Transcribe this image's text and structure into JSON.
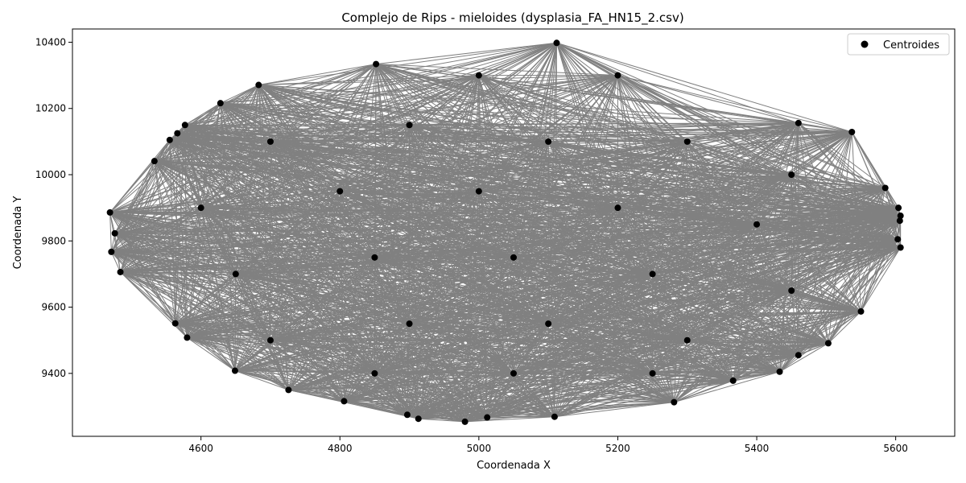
{
  "chart_data": {
    "type": "scatter",
    "title": "Complejo de Rips - mieloides (dysplasia_FA_HN15_2.csv)",
    "xlabel": "Coordenada X",
    "ylabel": "Coordenada Y",
    "xlim": [
      4415,
      5685
    ],
    "ylim": [
      9210,
      10440
    ],
    "xticks": [
      4600,
      4800,
      5000,
      5200,
      5400,
      5600
    ],
    "yticks": [
      9400,
      9600,
      9800,
      10000,
      10200,
      10400
    ],
    "grid": false,
    "legend": {
      "placement": "top-right",
      "entries": [
        "Centroides"
      ]
    },
    "colors": {
      "points": "#000000",
      "edges": "#808080"
    },
    "series": [
      {
        "name": "Centroides",
        "points": [
          [
            5112,
            10398
          ],
          [
            4852,
            10334
          ],
          [
            4683,
            10271
          ],
          [
            4628,
            10216
          ],
          [
            4577,
            10150
          ],
          [
            4566,
            10125
          ],
          [
            4555,
            10105
          ],
          [
            4533,
            10041
          ],
          [
            4469,
            9886
          ],
          [
            4476,
            9823
          ],
          [
            4471,
            9767
          ],
          [
            4484,
            9706
          ],
          [
            4563,
            9551
          ],
          [
            4580,
            9508
          ],
          [
            4649,
            9408
          ],
          [
            4726,
            9350
          ],
          [
            4806,
            9316
          ],
          [
            4897,
            9275
          ],
          [
            4913,
            9263
          ],
          [
            4980,
            9254
          ],
          [
            5012,
            9267
          ],
          [
            5109,
            9269
          ],
          [
            5281,
            9313
          ],
          [
            5366,
            9378
          ],
          [
            5433,
            9405
          ],
          [
            5460,
            9455
          ],
          [
            5503,
            9491
          ],
          [
            5550,
            9587
          ],
          [
            5607,
            9780
          ],
          [
            5603,
            9805
          ],
          [
            5606,
            9861
          ],
          [
            5607,
            9876
          ],
          [
            5604,
            9900
          ],
          [
            5585,
            9960
          ],
          [
            5537,
            10129
          ],
          [
            5460,
            10156
          ],
          [
            5000,
            10300
          ],
          [
            5200,
            10300
          ],
          [
            4700,
            10100
          ],
          [
            4900,
            10150
          ],
          [
            5100,
            10100
          ],
          [
            5300,
            10100
          ],
          [
            5450,
            10000
          ],
          [
            4600,
            9900
          ],
          [
            4800,
            9950
          ],
          [
            5000,
            9950
          ],
          [
            5200,
            9900
          ],
          [
            5400,
            9850
          ],
          [
            4650,
            9700
          ],
          [
            4850,
            9750
          ],
          [
            5050,
            9750
          ],
          [
            5250,
            9700
          ],
          [
            5450,
            9650
          ],
          [
            4700,
            9500
          ],
          [
            4900,
            9550
          ],
          [
            5100,
            9550
          ],
          [
            5300,
            9500
          ],
          [
            4850,
            9400
          ],
          [
            5050,
            9400
          ],
          [
            5250,
            9400
          ]
        ]
      }
    ]
  }
}
